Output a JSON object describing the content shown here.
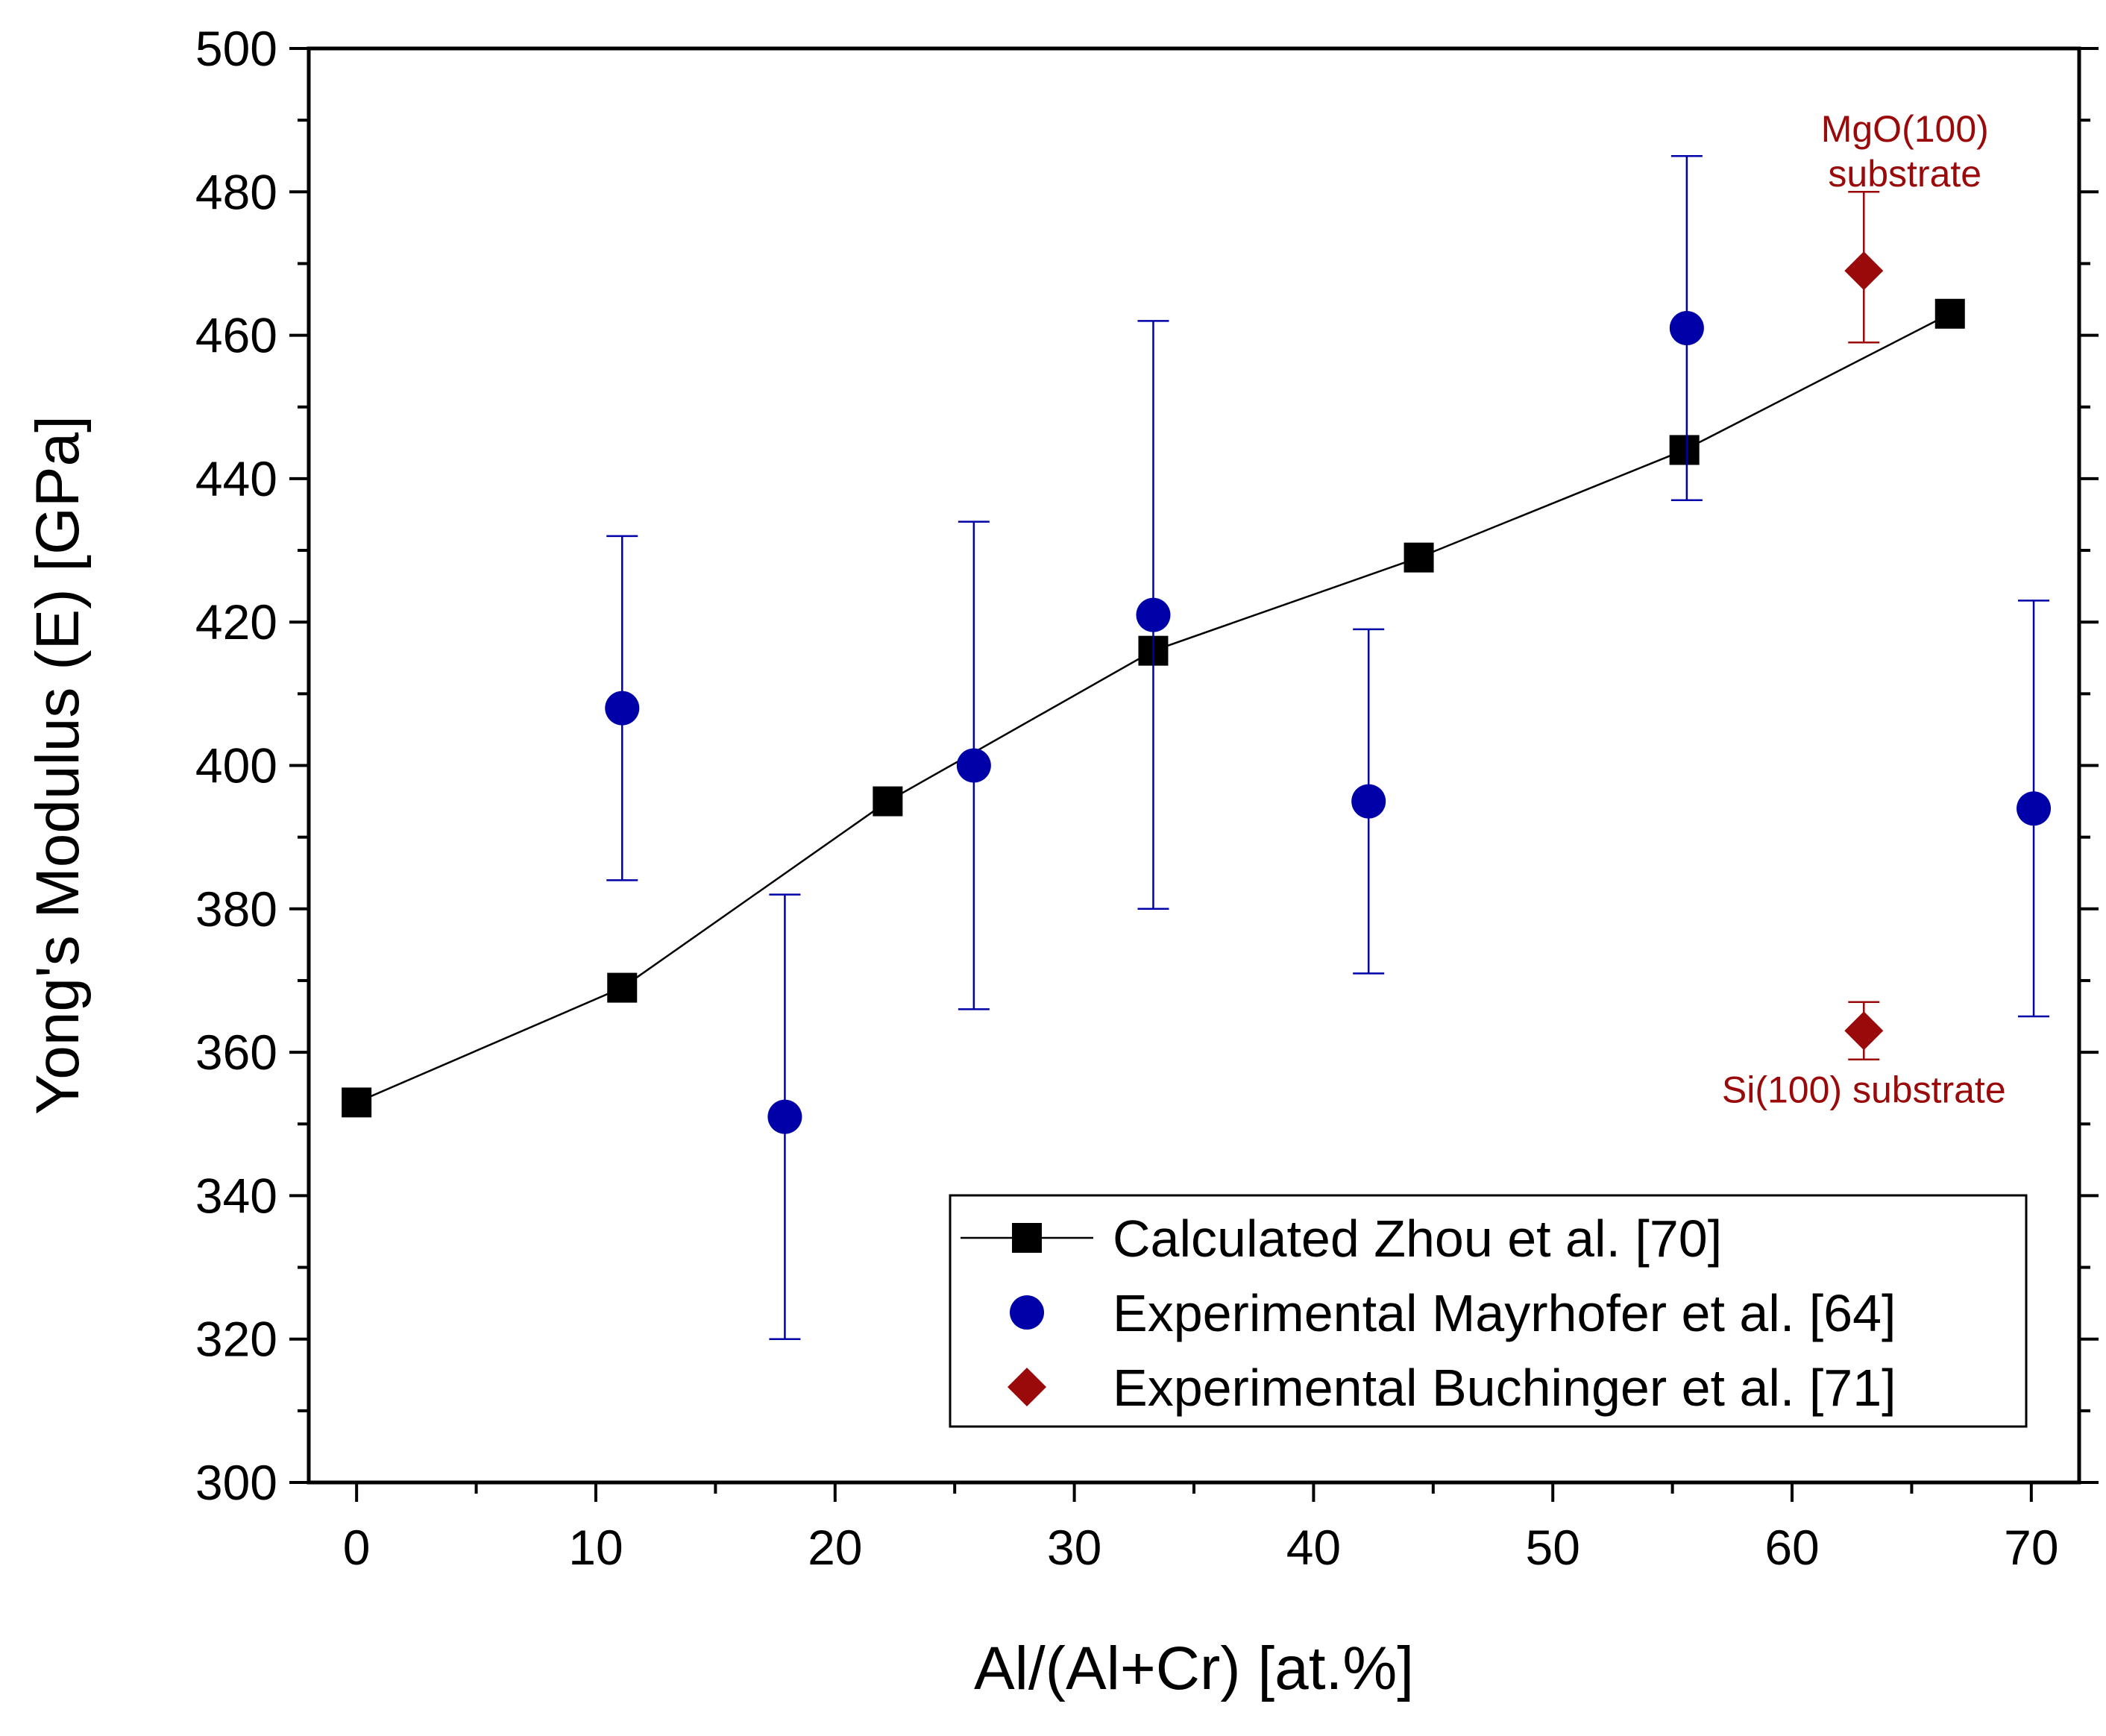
{
  "chart_data": {
    "type": "scatter",
    "xlabel": "Al/(Al+Cr) [at.%]",
    "ylabel": "Yong's Modulus (E) [GPa]",
    "xlim": [
      -2,
      72
    ],
    "ylim": [
      300,
      500
    ],
    "xticks": [
      0,
      10,
      20,
      30,
      40,
      50,
      60,
      70
    ],
    "yticks": [
      300,
      320,
      340,
      360,
      380,
      400,
      420,
      440,
      460,
      480,
      500
    ],
    "legend_position": "bottom-right",
    "series": [
      {
        "name": "Calculated Zhou et al. [70]",
        "marker": "square",
        "line": true,
        "color": "#000000",
        "points": [
          {
            "x": 0,
            "y": 353
          },
          {
            "x": 11.1,
            "y": 369
          },
          {
            "x": 22.2,
            "y": 395
          },
          {
            "x": 33.3,
            "y": 416
          },
          {
            "x": 44.4,
            "y": 429
          },
          {
            "x": 55.5,
            "y": 444
          },
          {
            "x": 66.6,
            "y": 463
          }
        ]
      },
      {
        "name": "Experimental Mayrhofer et al. [64]",
        "marker": "circle",
        "line": false,
        "color": "#0000A8",
        "points": [
          {
            "x": 11.1,
            "y": 408,
            "err_low": 384,
            "err_high": 432
          },
          {
            "x": 17.9,
            "y": 351,
            "err_low": 320,
            "err_high": 382
          },
          {
            "x": 25.8,
            "y": 400,
            "err_low": 366,
            "err_high": 434
          },
          {
            "x": 33.3,
            "y": 421,
            "err_low": 380,
            "err_high": 462
          },
          {
            "x": 42.3,
            "y": 395,
            "err_low": 371,
            "err_high": 419
          },
          {
            "x": 55.6,
            "y": 461,
            "err_low": 437,
            "err_high": 485
          },
          {
            "x": 70.1,
            "y": 394,
            "err_low": 365,
            "err_high": 423
          }
        ]
      },
      {
        "name": "Experimental Buchinger et al. [71]",
        "marker": "diamond",
        "line": false,
        "color": "#9A0A0A",
        "points": [
          {
            "x": 63,
            "y": 469,
            "err_low": 459,
            "err_high": 480
          },
          {
            "x": 63,
            "y": 363,
            "err_low": 359,
            "err_high": 367
          }
        ]
      }
    ],
    "annotations": [
      {
        "id": "mgo",
        "lines": [
          "MgO(100)",
          "substrate"
        ],
        "x": 63,
        "y": 487,
        "color": "#9A0A0A"
      },
      {
        "id": "si",
        "lines": [
          "Si(100) substrate"
        ],
        "x": 63,
        "y": 353,
        "color": "#9A0A0A"
      }
    ]
  }
}
